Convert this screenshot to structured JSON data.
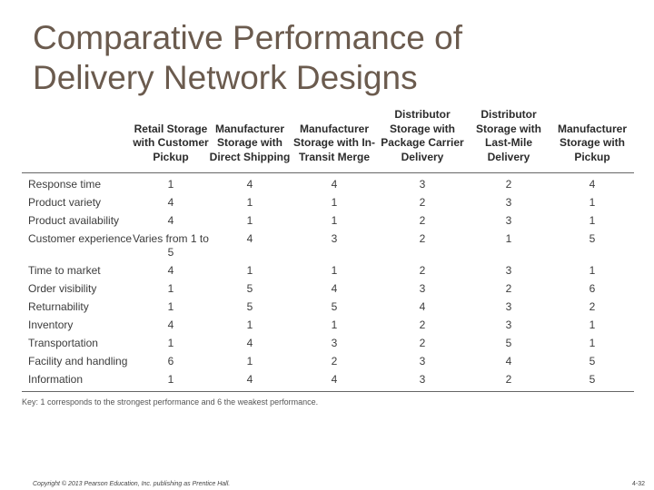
{
  "title_lines": [
    "Comparative Performance of",
    "Delivery Network Designs"
  ],
  "table": {
    "columns": [
      "",
      "Retail Storage with Customer Pickup",
      "Manufacturer Storage with Direct Shipping",
      "Manufacturer Storage with In-Transit Merge",
      "Distributor Storage with Package Carrier Delivery",
      "Distributor Storage with Last-Mile Delivery",
      "Manufacturer Storage with Pickup"
    ],
    "rows": [
      {
        "label": "Response time",
        "values": [
          "1",
          "4",
          "4",
          "3",
          "2",
          "4"
        ]
      },
      {
        "label": "Product variety",
        "values": [
          "4",
          "1",
          "1",
          "2",
          "3",
          "1"
        ]
      },
      {
        "label": "Product availability",
        "values": [
          "4",
          "1",
          "1",
          "2",
          "3",
          "1"
        ]
      },
      {
        "label": "Customer experience",
        "values": [
          "Varies from 1 to 5",
          "4",
          "3",
          "2",
          "1",
          "5"
        ]
      },
      {
        "label": "Time to market",
        "values": [
          "4",
          "1",
          "1",
          "2",
          "3",
          "1"
        ]
      },
      {
        "label": "Order visibility",
        "values": [
          "1",
          "5",
          "4",
          "3",
          "2",
          "6"
        ]
      },
      {
        "label": "Returnability",
        "values": [
          "1",
          "5",
          "5",
          "4",
          "3",
          "2"
        ]
      },
      {
        "label": "Inventory",
        "values": [
          "4",
          "1",
          "1",
          "2",
          "3",
          "1"
        ]
      },
      {
        "label": "Transportation",
        "values": [
          "1",
          "4",
          "3",
          "2",
          "5",
          "1"
        ]
      },
      {
        "label": "Facility and handling",
        "values": [
          "6",
          "1",
          "2",
          "3",
          "4",
          "5"
        ]
      },
      {
        "label": "Information",
        "values": [
          "1",
          "4",
          "4",
          "3",
          "2",
          "5"
        ]
      }
    ],
    "key": "Key: 1 corresponds to the strongest performance and 6 the weakest performance."
  },
  "footer": {
    "copyright": "Copyright © 2013 Pearson Education, Inc. publishing as Prentice Hall.",
    "page": "4-32"
  }
}
